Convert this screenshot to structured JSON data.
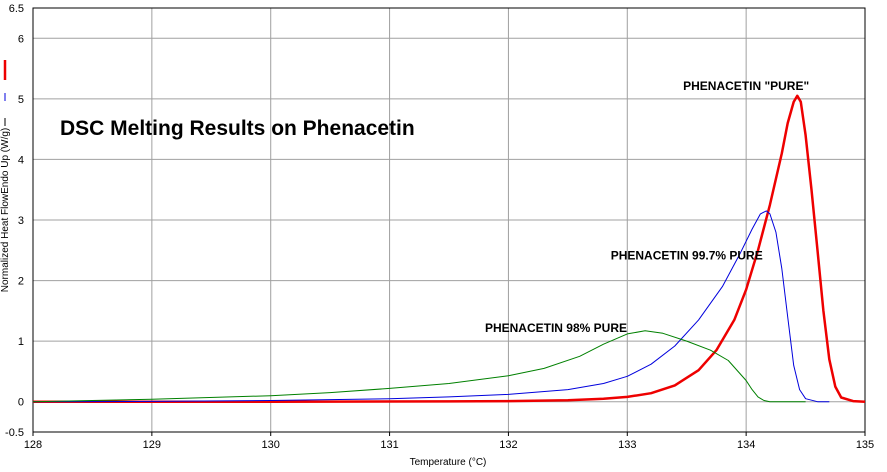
{
  "chart_data": {
    "type": "line",
    "title": "DSC Melting Results on Phenacetin",
    "xlabel": "Temperature (°C)",
    "ylabel": "Normalized Heat FlowEndo Up (W/g)",
    "xlim": [
      128,
      135
    ],
    "ylim": [
      -0.5,
      6.5
    ],
    "xticks": [
      "128",
      "129",
      "130",
      "131",
      "132",
      "133",
      "134",
      "135"
    ],
    "yticks": [
      "-0.5",
      "0",
      "1",
      "2",
      "3",
      "4",
      "5",
      "6",
      "6.5"
    ],
    "grid": true,
    "annotations": [
      {
        "text": "PHENACETIN \"PURE\"",
        "x": 134.0,
        "y": 5.15
      },
      {
        "text": "PHENACETIN 99.7% PURE",
        "x": 133.5,
        "y": 2.35
      },
      {
        "text": "PHENACETIN 98% PURE",
        "x": 132.4,
        "y": 1.15
      }
    ],
    "series": [
      {
        "color": "#ee0000",
        "width": 2.5,
        "x": [
          128.0,
          130.0,
          131.5,
          132.0,
          132.5,
          132.8,
          133.0,
          133.2,
          133.4,
          133.6,
          133.75,
          133.9,
          134.0,
          134.1,
          134.2,
          134.3,
          134.35,
          134.4,
          134.43,
          134.46,
          134.5,
          134.55,
          134.6,
          134.65,
          134.7,
          134.75,
          134.8,
          134.9,
          135.0
        ],
        "y": [
          0.0,
          0.0,
          0.005,
          0.01,
          0.025,
          0.05,
          0.08,
          0.14,
          0.27,
          0.52,
          0.85,
          1.35,
          1.85,
          2.5,
          3.25,
          4.1,
          4.6,
          4.95,
          5.05,
          4.95,
          4.4,
          3.5,
          2.5,
          1.5,
          0.7,
          0.25,
          0.07,
          0.01,
          0.0
        ]
      },
      {
        "color": "#0000dd",
        "width": 1,
        "x": [
          128.0,
          129.0,
          130.0,
          131.0,
          131.5,
          132.0,
          132.5,
          132.8,
          133.0,
          133.2,
          133.4,
          133.6,
          133.8,
          133.95,
          134.05,
          134.12,
          134.17,
          134.2,
          134.25,
          134.3,
          134.35,
          134.4,
          134.45,
          134.5,
          134.6,
          134.7
        ],
        "y": [
          0.0,
          0.005,
          0.02,
          0.05,
          0.08,
          0.12,
          0.2,
          0.3,
          0.42,
          0.62,
          0.92,
          1.35,
          1.9,
          2.45,
          2.85,
          3.1,
          3.15,
          3.1,
          2.8,
          2.2,
          1.4,
          0.6,
          0.2,
          0.05,
          0.0,
          0.0
        ]
      },
      {
        "color": "#008000",
        "width": 1,
        "x": [
          128.0,
          129.0,
          130.0,
          130.5,
          131.0,
          131.5,
          132.0,
          132.3,
          132.6,
          132.8,
          133.0,
          133.15,
          133.3,
          133.5,
          133.7,
          133.85,
          134.0,
          134.05,
          134.1,
          134.15,
          134.2,
          134.3,
          134.5
        ],
        "y": [
          0.0,
          0.04,
          0.1,
          0.15,
          0.22,
          0.3,
          0.43,
          0.55,
          0.75,
          0.95,
          1.12,
          1.17,
          1.13,
          1.0,
          0.85,
          0.68,
          0.35,
          0.2,
          0.08,
          0.02,
          0.0,
          0.0,
          0.0
        ]
      }
    ]
  },
  "legend_markers": [
    {
      "color": "#ee0000"
    },
    {
      "color": "#0000dd"
    },
    {
      "color": "#000000"
    }
  ]
}
